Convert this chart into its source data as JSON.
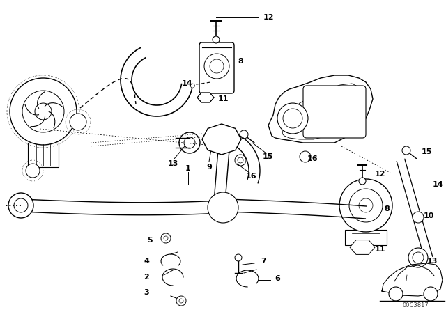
{
  "bg_color": "#ffffff",
  "line_color": "#000000",
  "watermark": "00C3817",
  "fig_width": 6.4,
  "fig_height": 4.48,
  "dpi": 100
}
